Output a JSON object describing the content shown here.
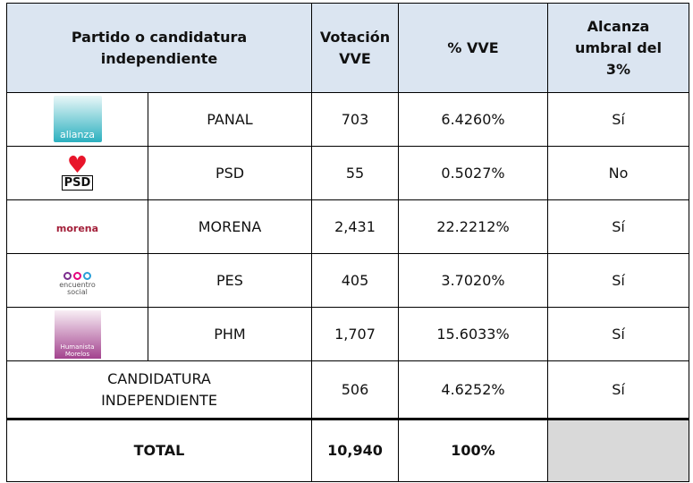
{
  "table": {
    "header": [
      "Partido o candidatura\nindependiente",
      "Votación\nVVE",
      "% VVE",
      "Alcanza\numbral del\n3%"
    ],
    "rows": [
      {
        "logo": [
          "alianza"
        ],
        "party": "PANAL",
        "votes": "703",
        "pct": "6.4260%",
        "threshold": "Sí"
      },
      {
        "logo": [
          "PSD"
        ],
        "party": "PSD",
        "votes": "55",
        "pct": "0.5027%",
        "threshold": "No"
      },
      {
        "logo": [
          "morena"
        ],
        "party": "MORENA",
        "votes": "2,431",
        "pct": "22.2212%",
        "threshold": "Sí"
      },
      {
        "logo": [
          "encuentro",
          "social"
        ],
        "party": "PES",
        "votes": "405",
        "pct": "3.7020%",
        "threshold": "Sí"
      },
      {
        "logo": [
          "Humanista",
          "Morelos"
        ],
        "party": "PHM",
        "votes": "1,707",
        "pct": "15.6033%",
        "threshold": "Sí"
      }
    ],
    "independent": {
      "party": "CANDIDATURA\nINDEPENDIENTE",
      "votes": "506",
      "pct": "4.6252%",
      "threshold": "Sí"
    },
    "total": {
      "label": "TOTAL",
      "votes": "10,940",
      "pct": "100%"
    }
  }
}
